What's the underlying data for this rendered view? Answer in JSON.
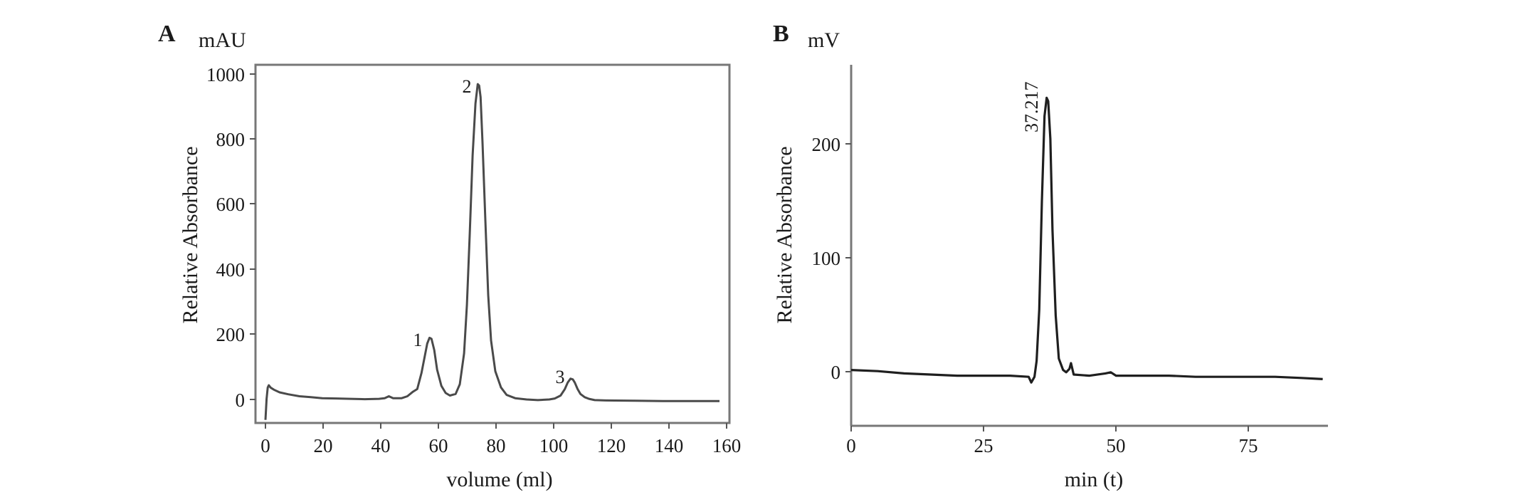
{
  "chart_data": [
    {
      "type": "line",
      "panel_label": "A",
      "unit_label": "mAU",
      "xlabel": "volume (ml)",
      "ylabel": "Relative Absorbance",
      "xlim": [
        -3,
        163
      ],
      "ylim": [
        -60,
        1035
      ],
      "x_ticks": [
        "0",
        "20",
        "40",
        "60",
        "80",
        "100",
        "120",
        "140",
        "160"
      ],
      "y_ticks": [
        "0",
        "200",
        "400",
        "600",
        "800",
        "1000"
      ],
      "grid": false,
      "peak_labels": [
        {
          "text": "1",
          "x": 58,
          "y": 200
        },
        {
          "text": "2",
          "x": 75,
          "y": 980
        },
        {
          "text": "3",
          "x": 108,
          "y": 70
        }
      ],
      "series": [
        {
          "color": "#4a4a4a",
          "x": [
            0,
            0.4,
            0.8,
            1.2,
            1.8,
            3,
            5,
            8,
            12,
            16,
            20,
            25,
            30,
            35,
            40,
            42,
            43.5,
            45,
            48,
            50,
            52,
            53.5,
            55,
            56,
            57,
            57.8,
            58.5,
            59.5,
            60.5,
            62,
            63.5,
            65,
            67,
            68.5,
            70,
            71,
            72,
            73,
            74,
            74.8,
            75.3,
            75.8,
            76.5,
            77.5,
            78.5,
            79.5,
            81,
            83,
            85,
            88,
            92,
            96,
            100,
            102,
            104,
            105.5,
            106.5,
            107.5,
            108.3,
            109,
            110,
            111,
            112.5,
            114,
            116,
            120,
            130,
            140,
            150,
            160
          ],
          "y": [
            -55,
            10,
            45,
            52,
            45,
            38,
            30,
            24,
            18,
            15,
            12,
            11,
            10,
            9,
            10,
            12,
            18,
            12,
            12,
            18,
            32,
            40,
            90,
            135,
            180,
            198,
            195,
            160,
            100,
            50,
            28,
            20,
            25,
            55,
            150,
            300,
            520,
            760,
            920,
            980,
            975,
            940,
            800,
            560,
            330,
            190,
            95,
            45,
            22,
            12,
            8,
            6,
            8,
            11,
            20,
            40,
            60,
            72,
            70,
            60,
            40,
            25,
            15,
            10,
            6,
            5,
            4,
            3,
            3,
            3
          ]
        }
      ]
    },
    {
      "type": "line",
      "panel_label": "B",
      "unit_label": "mV",
      "xlabel": "min (t)",
      "ylabel": "Relative Absorbance",
      "xlim": [
        0,
        90
      ],
      "ylim": [
        -47,
        270
      ],
      "x_ticks": [
        "0",
        "25",
        "50",
        "75"
      ],
      "y_ticks": [
        "0",
        "100",
        "200"
      ],
      "grid": false,
      "peak_labels": [
        {
          "text": "37.217",
          "x": 37.2,
          "y": 241
        }
      ],
      "series": [
        {
          "color": "#1f1f1f",
          "x": [
            0,
            5,
            10,
            15,
            20,
            25,
            30,
            33.5,
            34,
            34.6,
            35,
            35.5,
            36,
            36.5,
            36.9,
            37.2,
            37.6,
            38,
            38.6,
            39.2,
            40,
            40.6,
            41.2,
            41.5,
            42,
            45,
            48,
            49,
            50,
            55,
            60,
            65,
            70,
            75,
            80,
            85,
            89
          ],
          "y": [
            2,
            1,
            -1,
            -2,
            -3,
            -3,
            -3,
            -4,
            -9,
            -4,
            10,
            55,
            150,
            225,
            241,
            238,
            205,
            125,
            50,
            12,
            2,
            0,
            3,
            8,
            -2,
            -3,
            -1,
            0,
            -3,
            -3,
            -3,
            -4,
            -4,
            -4,
            -4,
            -5,
            -6
          ]
        }
      ]
    }
  ]
}
